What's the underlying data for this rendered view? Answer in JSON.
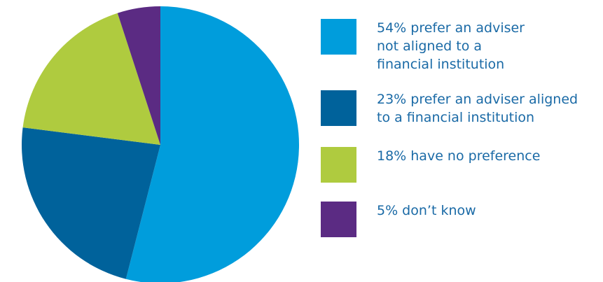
{
  "chart_data": {
    "type": "pie",
    "slices": [
      {
        "label": "54% prefer an adviser\nnot aligned to a\nfinancial institution",
        "value": 54,
        "color": "#009ddc"
      },
      {
        "label": "23% prefer an adviser aligned\nto a financial institution",
        "value": 23,
        "color": "#00629b"
      },
      {
        "label": "18% have no preference",
        "value": 18,
        "color": "#afcb3f"
      },
      {
        "label": "5% don’t know",
        "value": 5,
        "color": "#5b2b83"
      }
    ],
    "legend": "right"
  }
}
